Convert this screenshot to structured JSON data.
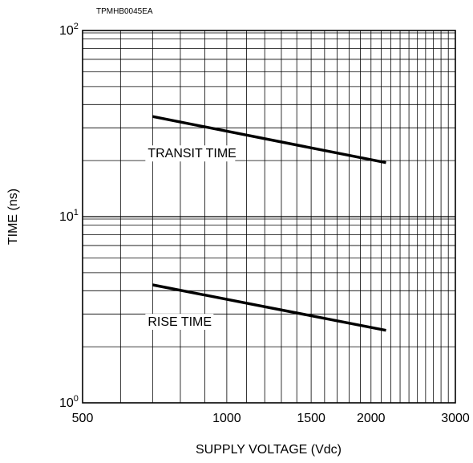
{
  "figure_code": "TPMHB0045EA",
  "chart_data": {
    "type": "line",
    "xscale": "log",
    "yscale": "log",
    "xlabel": "SUPPLY VOLTAGE (Vdc)",
    "ylabel": "TIME (ns)",
    "xlim": [
      500,
      3000
    ],
    "ylim": [
      1,
      100
    ],
    "grid": true,
    "x_ticks": [
      "500",
      "1000",
      "1500",
      "2000",
      "3000"
    ],
    "y_ticks": [
      {
        "base": "10",
        "exp": "0"
      },
      {
        "base": "10",
        "exp": "1"
      },
      {
        "base": "10",
        "exp": "2"
      }
    ],
    "series": [
      {
        "name": "TRANSIT TIME",
        "x": [
          700,
          2150
        ],
        "y": [
          34.5,
          19.5
        ]
      },
      {
        "name": "RISE TIME",
        "x": [
          700,
          2150
        ],
        "y": [
          4.3,
          2.45
        ]
      }
    ]
  }
}
